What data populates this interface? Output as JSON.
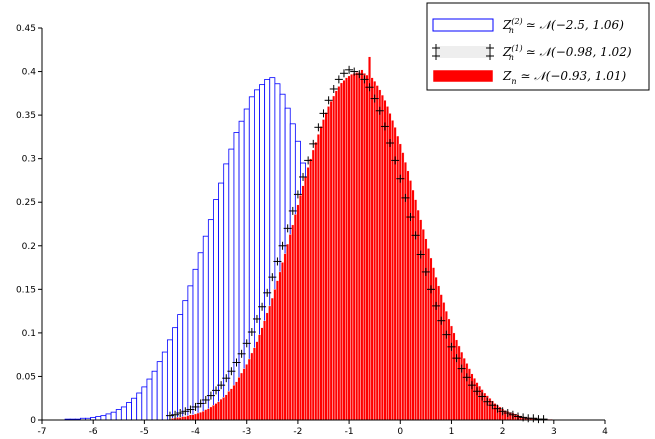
{
  "chart_data": {
    "type": "bar",
    "title": "",
    "xlabel": "",
    "ylabel": "",
    "xlim": [
      -7,
      4
    ],
    "ylim": [
      0,
      0.45
    ],
    "grid": false,
    "legend_position": "top-right",
    "x_ticks": [
      {
        "value": -7,
        "label": "-7"
      },
      {
        "value": -6,
        "label": "-6"
      },
      {
        "value": -5,
        "label": "-5"
      },
      {
        "value": -4,
        "label": "-4"
      },
      {
        "value": -3,
        "label": "-3"
      },
      {
        "value": -2,
        "label": "-2"
      },
      {
        "value": -1,
        "label": "-1"
      },
      {
        "value": 0,
        "label": "0"
      },
      {
        "value": 1,
        "label": "1"
      },
      {
        "value": 2,
        "label": "2"
      },
      {
        "value": 3,
        "label": "3"
      },
      {
        "value": 4,
        "label": "4"
      }
    ],
    "y_ticks": [
      {
        "value": 0,
        "label": "0"
      },
      {
        "value": 0.05,
        "label": "0.05"
      },
      {
        "value": 0.1,
        "label": "0.1"
      },
      {
        "value": 0.15,
        "label": "0.15"
      },
      {
        "value": 0.2,
        "label": "0.2"
      },
      {
        "value": 0.25,
        "label": "0.25"
      },
      {
        "value": 0.3,
        "label": "0.3"
      },
      {
        "value": 0.35,
        "label": "0.35"
      },
      {
        "value": 0.4,
        "label": "0.4"
      },
      {
        "value": 0.45,
        "label": "0.45"
      }
    ],
    "series": [
      {
        "name": "Z_n^(2) ≃ N(−2.5, 1.06)",
        "style": "histogram-outline",
        "color": "#0000ff",
        "bin_width": 0.1,
        "bin_centers": [
          -7.0,
          -6.9,
          -6.8,
          -6.7,
          -6.6,
          -6.5,
          -6.4,
          -6.3,
          -6.2,
          -6.1,
          -6.0,
          -5.9,
          -5.8,
          -5.7,
          -5.6,
          -5.5,
          -5.4,
          -5.3,
          -5.2,
          -5.1,
          -5.0,
          -4.9,
          -4.8,
          -4.7,
          -4.6,
          -4.5,
          -4.4,
          -4.3,
          -4.2,
          -4.1,
          -4.0,
          -3.9,
          -3.8,
          -3.7,
          -3.6,
          -3.5,
          -3.4,
          -3.3,
          -3.2,
          -3.1,
          -3.0,
          -2.9,
          -2.8,
          -2.7,
          -2.6,
          -2.5,
          -2.4,
          -2.3,
          -2.2,
          -2.1,
          -2.0,
          -1.9,
          -1.8,
          -1.7,
          -1.6,
          -1.5,
          -1.4,
          -1.3,
          -1.2,
          -1.1,
          -1.0,
          -0.9,
          -0.8,
          -0.7,
          -0.6,
          -0.5,
          -0.4,
          -0.3,
          -0.2,
          -0.1,
          0.0,
          0.1,
          0.2,
          0.3,
          0.4,
          0.5,
          0.6,
          0.7,
          0.8,
          0.9,
          1.0,
          1.1,
          1.2,
          1.3,
          1.4,
          1.5,
          1.6,
          1.7,
          1.8,
          1.9,
          2.0
        ],
        "values": [
          0.0,
          0.0,
          0.0,
          0.0,
          0.0,
          0.001,
          0.001,
          0.001,
          0.002,
          0.002,
          0.003,
          0.004,
          0.005,
          0.007,
          0.009,
          0.012,
          0.015,
          0.02,
          0.025,
          0.031,
          0.038,
          0.047,
          0.056,
          0.067,
          0.078,
          0.092,
          0.106,
          0.121,
          0.137,
          0.154,
          0.173,
          0.192,
          0.211,
          0.23,
          0.253,
          0.272,
          0.294,
          0.311,
          0.33,
          0.343,
          0.357,
          0.371,
          0.379,
          0.385,
          0.391,
          0.393,
          0.386,
          0.374,
          0.358,
          0.34,
          0.32,
          0.295,
          0.273,
          0.248,
          0.222,
          0.197,
          0.174,
          0.15,
          0.13,
          0.111,
          0.093,
          0.077,
          0.063,
          0.051,
          0.041,
          0.031,
          0.024,
          0.018,
          0.013,
          0.01,
          0.007,
          0.005,
          0.004,
          0.003,
          0.002,
          0.001,
          0.001,
          0.001,
          0.0,
          0.0,
          0.0,
          0.0,
          0.0,
          0.0,
          0.0,
          0.0,
          0.0,
          0.0,
          0.0,
          0.0,
          0.0
        ]
      },
      {
        "name": "Z_n^(1) ≃ N(−0.98, 1.02)",
        "style": "crosses",
        "color": "#000000",
        "bin_width": 0.1,
        "bin_centers": [
          -4.5,
          -4.4,
          -4.3,
          -4.2,
          -4.1,
          -4.0,
          -3.9,
          -3.8,
          -3.7,
          -3.6,
          -3.5,
          -3.4,
          -3.3,
          -3.2,
          -3.1,
          -3.0,
          -2.9,
          -2.8,
          -2.7,
          -2.6,
          -2.5,
          -2.4,
          -2.3,
          -2.2,
          -2.1,
          -2.0,
          -1.9,
          -1.8,
          -1.7,
          -1.6,
          -1.5,
          -1.4,
          -1.3,
          -1.2,
          -1.1,
          -1.0,
          -0.9,
          -0.8,
          -0.7,
          -0.6,
          -0.5,
          -0.4,
          -0.3,
          -0.2,
          -0.1,
          0.0,
          0.1,
          0.2,
          0.3,
          0.4,
          0.5,
          0.6,
          0.7,
          0.8,
          0.9,
          1.0,
          1.1,
          1.2,
          1.3,
          1.4,
          1.5,
          1.6,
          1.7,
          1.8,
          1.9,
          2.0,
          2.1,
          2.2,
          2.3,
          2.4,
          2.5,
          2.6,
          2.7,
          2.8
        ],
        "values": [
          0.005,
          0.006,
          0.008,
          0.01,
          0.012,
          0.015,
          0.019,
          0.023,
          0.028,
          0.034,
          0.04,
          0.048,
          0.056,
          0.066,
          0.076,
          0.088,
          0.101,
          0.116,
          0.13,
          0.146,
          0.164,
          0.182,
          0.2,
          0.22,
          0.24,
          0.259,
          0.279,
          0.298,
          0.317,
          0.336,
          0.352,
          0.367,
          0.38,
          0.391,
          0.398,
          0.402,
          0.4,
          0.397,
          0.391,
          0.382,
          0.369,
          0.355,
          0.337,
          0.318,
          0.298,
          0.277,
          0.255,
          0.233,
          0.212,
          0.19,
          0.17,
          0.15,
          0.131,
          0.114,
          0.098,
          0.084,
          0.071,
          0.059,
          0.049,
          0.04,
          0.033,
          0.027,
          0.021,
          0.017,
          0.013,
          0.01,
          0.008,
          0.006,
          0.004,
          0.003,
          0.002,
          0.002,
          0.001,
          0.001
        ]
      },
      {
        "name": "Z_n ≃ N(−0.93, 1.01)",
        "style": "histogram-filled",
        "color": "#ff0000",
        "bin_width": 0.05,
        "bin_centers": [
          -4.5,
          -4.45,
          -4.4,
          -4.35,
          -4.3,
          -4.25,
          -4.2,
          -4.15,
          -4.1,
          -4.05,
          -4.0,
          -3.95,
          -3.9,
          -3.85,
          -3.8,
          -3.75,
          -3.7,
          -3.65,
          -3.6,
          -3.55,
          -3.5,
          -3.45,
          -3.4,
          -3.35,
          -3.3,
          -3.25,
          -3.2,
          -3.15,
          -3.1,
          -3.05,
          -3.0,
          -2.95,
          -2.9,
          -2.85,
          -2.8,
          -2.75,
          -2.7,
          -2.65,
          -2.6,
          -2.55,
          -2.5,
          -2.45,
          -2.4,
          -2.35,
          -2.3,
          -2.25,
          -2.2,
          -2.15,
          -2.1,
          -2.05,
          -2.0,
          -1.95,
          -1.9,
          -1.85,
          -1.8,
          -1.75,
          -1.7,
          -1.65,
          -1.6,
          -1.55,
          -1.5,
          -1.45,
          -1.4,
          -1.35,
          -1.3,
          -1.25,
          -1.2,
          -1.15,
          -1.1,
          -1.05,
          -1.0,
          -0.95,
          -0.9,
          -0.85,
          -0.8,
          -0.75,
          -0.7,
          -0.65,
          -0.6,
          -0.55,
          -0.5,
          -0.45,
          -0.4,
          -0.35,
          -0.3,
          -0.25,
          -0.2,
          -0.15,
          -0.1,
          -0.05,
          0.0,
          0.05,
          0.1,
          0.15,
          0.2,
          0.25,
          0.3,
          0.35,
          0.4,
          0.45,
          0.5,
          0.55,
          0.6,
          0.65,
          0.7,
          0.75,
          0.8,
          0.85,
          0.9,
          0.95,
          1.0,
          1.05,
          1.1,
          1.15,
          1.2,
          1.25,
          1.3,
          1.35,
          1.4,
          1.45,
          1.5,
          1.55,
          1.6,
          1.65,
          1.7,
          1.75,
          1.8,
          1.85,
          1.9,
          1.95,
          2.0,
          2.05,
          2.1,
          2.15,
          2.2,
          2.25,
          2.3,
          2.35,
          2.4,
          2.45,
          2.5,
          2.55,
          2.6,
          2.65,
          2.7,
          2.75,
          2.8,
          2.85,
          2.9,
          2.95,
          3.0
        ],
        "values": [
          0.001,
          0.002,
          0.002,
          0.003,
          0.003,
          0.004,
          0.004,
          0.005,
          0.006,
          0.006,
          0.007,
          0.008,
          0.009,
          0.01,
          0.012,
          0.013,
          0.015,
          0.017,
          0.019,
          0.021,
          0.024,
          0.026,
          0.029,
          0.033,
          0.036,
          0.04,
          0.044,
          0.049,
          0.054,
          0.059,
          0.064,
          0.07,
          0.077,
          0.083,
          0.09,
          0.098,
          0.106,
          0.114,
          0.123,
          0.131,
          0.14,
          0.15,
          0.16,
          0.17,
          0.181,
          0.191,
          0.202,
          0.213,
          0.224,
          0.236,
          0.247,
          0.258,
          0.269,
          0.279,
          0.29,
          0.3,
          0.31,
          0.319,
          0.328,
          0.337,
          0.345,
          0.353,
          0.36,
          0.366,
          0.372,
          0.378,
          0.383,
          0.387,
          0.39,
          0.393,
          0.395,
          0.397,
          0.398,
          0.399,
          0.399,
          0.402,
          0.398,
          0.396,
          0.417,
          0.393,
          0.389,
          0.384,
          0.379,
          0.373,
          0.367,
          0.36,
          0.352,
          0.344,
          0.336,
          0.326,
          0.317,
          0.307,
          0.296,
          0.286,
          0.275,
          0.264,
          0.253,
          0.241,
          0.23,
          0.219,
          0.208,
          0.197,
          0.186,
          0.175,
          0.164,
          0.154,
          0.144,
          0.135,
          0.125,
          0.116,
          0.108,
          0.1,
          0.092,
          0.085,
          0.078,
          0.071,
          0.065,
          0.059,
          0.053,
          0.048,
          0.043,
          0.039,
          0.035,
          0.031,
          0.028,
          0.025,
          0.022,
          0.019,
          0.017,
          0.015,
          0.013,
          0.011,
          0.01,
          0.009,
          0.008,
          0.007,
          0.006,
          0.005,
          0.004,
          0.003,
          0.003,
          0.002,
          0.002,
          0.002,
          0.001,
          0.001,
          0.001,
          0.001,
          0.001,
          0.001,
          0.0,
          0.0,
          0.0
        ]
      }
    ],
    "legend": [
      {
        "var": "Z",
        "sub": "n",
        "sup": "(2)",
        "rest": " ≃ 𝒩(−2.5, 1.06)",
        "swatch": "blue-outline"
      },
      {
        "var": "Z",
        "sub": "n",
        "sup": "(1)",
        "rest": " ≃ 𝒩(−0.98, 1.02)",
        "swatch": "crosses"
      },
      {
        "var": "Z",
        "sub": "n",
        "sup": "",
        "rest": " ≃ 𝒩(−0.93, 1.01)",
        "swatch": "red-filled"
      }
    ]
  }
}
